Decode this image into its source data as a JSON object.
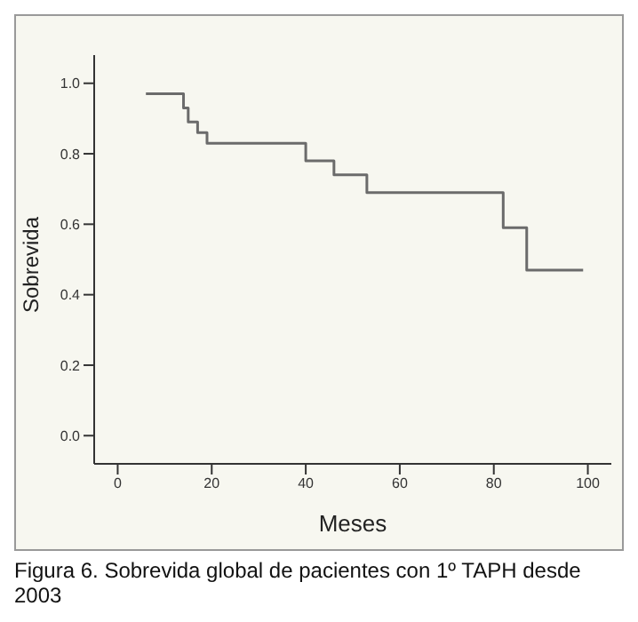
{
  "chart_data": {
    "type": "step",
    "xlabel": "Meses",
    "ylabel": "Sobrevida",
    "annotations": [
      "Figura 6. Sobrevida global de pacientes con 1º TAPH desde 2003"
    ],
    "x": [
      6,
      14,
      15,
      17,
      19,
      40,
      46,
      53,
      82,
      87,
      99
    ],
    "series": [
      {
        "color": "#6b6b6b",
        "values": [
          0.97,
          0.93,
          0.89,
          0.86,
          0.83,
          0.78,
          0.74,
          0.69,
          0.59,
          0.47,
          0.47
        ]
      }
    ],
    "xlim": [
      -5,
      105
    ],
    "xticks": [
      0,
      20,
      40,
      60,
      80,
      100
    ],
    "ylim": [
      -0.08,
      1.08
    ],
    "yticks": [
      {
        "value": 0,
        "label": "0.0"
      },
      {
        "value": 0.2,
        "label": "0.2"
      },
      {
        "value": 0.4,
        "label": "0.4"
      },
      {
        "value": 0.6,
        "label": "0.6"
      },
      {
        "value": 0.8,
        "label": "0.8"
      },
      {
        "value": 1,
        "label": "1.0"
      }
    ],
    "grid": false,
    "legend": false,
    "marker": "none",
    "line_style": "solid"
  }
}
